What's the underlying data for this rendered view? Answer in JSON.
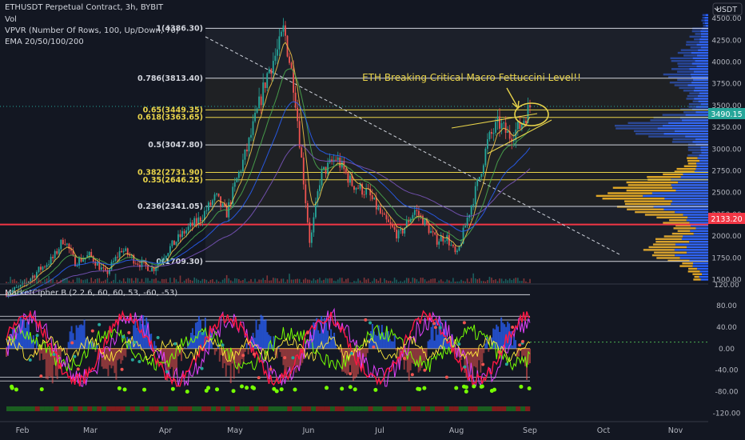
{
  "header": {
    "symbol_line": "ETHUSDT Perpetual Contract, 3h, BYBIT",
    "vol_label": "Vol",
    "vpvr_label": "VPVR (Number Of Rows, 100, Up/Down, 70)",
    "ema_label": "EMA 20/50/100/200",
    "currency": "USDT"
  },
  "indicator": {
    "label": "MarketCipher B (2.2.6, 60, 60, 53, -60, -53)"
  },
  "annotation": {
    "text": "ETH Breaking Critical Macro Fettuccini Level!!"
  },
  "colors": {
    "background": "#131722",
    "fib_white": "#d1d4dc",
    "fib_yellow": "#e8d34a",
    "red_line": "#f23645",
    "up_candle": "#26a69a",
    "down_candle": "#ef5350",
    "volume_up": "#2962ff",
    "volume_down": "#e0a526"
  },
  "chart_data": {
    "type": "candlestick",
    "title": "ETHUSDT Perpetual Contract, 3h, BYBIT",
    "price_axis": {
      "ticks": [
        4500,
        4250,
        4000,
        3750,
        3500,
        3250,
        3000,
        2750,
        2500,
        2250,
        2000,
        1750,
        1500
      ],
      "tick_labels": [
        "4500.00",
        "4250.00",
        "4000.00",
        "3750.00",
        "3500.00",
        "3250.00",
        "3000.00",
        "2750.00",
        "2500.00",
        "2250.00",
        "2000.00",
        "1750.00",
        "1500.00"
      ],
      "range": [
        1450,
        4620
      ],
      "volume_scale_label": "120.00"
    },
    "time_axis": {
      "labels": [
        "Feb",
        "Mar",
        "Apr",
        "May",
        "Jun",
        "Jul",
        "Aug",
        "Sep",
        "Oct",
        "Nov"
      ]
    },
    "current_price": {
      "value": 3490.15,
      "label": "3490.15"
    },
    "red_level": {
      "value": 2133.2,
      "label": "2133.20"
    },
    "fib_levels": [
      {
        "ratio": "1",
        "value": 4386.3,
        "label": "1(4386.30)",
        "style": "white"
      },
      {
        "ratio": "0.786",
        "value": 3813.4,
        "label": "0.786(3813.40)",
        "style": "white"
      },
      {
        "ratio": "0.65",
        "value": 3449.35,
        "label": "0.65(3449.35)",
        "style": "yellow"
      },
      {
        "ratio": "0.618",
        "value": 3363.65,
        "label": "0.618(3363.65)",
        "style": "yellow"
      },
      {
        "ratio": "0.5",
        "value": 3047.8,
        "label": "0.5(3047.80)",
        "style": "white"
      },
      {
        "ratio": "0.382",
        "value": 2731.9,
        "label": "0.382(2731.90)",
        "style": "yellow"
      },
      {
        "ratio": "0.35",
        "value": 2646.25,
        "label": "0.35(2646.25)",
        "style": "yellow"
      },
      {
        "ratio": "0.236",
        "value": 2341.05,
        "label": "0.236(2341.05)",
        "style": "white"
      },
      {
        "ratio": "0",
        "value": 1709.3,
        "label": "0(1709.30)",
        "style": "white"
      }
    ],
    "price_path": [
      {
        "t": 0.0,
        "p": 1350
      },
      {
        "t": 0.03,
        "p": 1420
      },
      {
        "t": 0.06,
        "p": 1600
      },
      {
        "t": 0.09,
        "p": 1750
      },
      {
        "t": 0.11,
        "p": 1980
      },
      {
        "t": 0.13,
        "p": 1700
      },
      {
        "t": 0.16,
        "p": 1780
      },
      {
        "t": 0.19,
        "p": 1560
      },
      {
        "t": 0.22,
        "p": 1850
      },
      {
        "t": 0.25,
        "p": 1700
      },
      {
        "t": 0.28,
        "p": 1620
      },
      {
        "t": 0.31,
        "p": 1850
      },
      {
        "t": 0.34,
        "p": 2050
      },
      {
        "t": 0.37,
        "p": 2200
      },
      {
        "t": 0.4,
        "p": 2450
      },
      {
        "t": 0.42,
        "p": 2250
      },
      {
        "t": 0.44,
        "p": 2650
      },
      {
        "t": 0.46,
        "p": 3000
      },
      {
        "t": 0.48,
        "p": 3450
      },
      {
        "t": 0.5,
        "p": 3900
      },
      {
        "t": 0.52,
        "p": 4150
      },
      {
        "t": 0.53,
        "p": 4386
      },
      {
        "t": 0.55,
        "p": 3700
      },
      {
        "t": 0.57,
        "p": 2500
      },
      {
        "t": 0.58,
        "p": 1900
      },
      {
        "t": 0.6,
        "p": 2700
      },
      {
        "t": 0.63,
        "p": 2900
      },
      {
        "t": 0.66,
        "p": 2600
      },
      {
        "t": 0.69,
        "p": 2500
      },
      {
        "t": 0.72,
        "p": 2200
      },
      {
        "t": 0.75,
        "p": 2000
      },
      {
        "t": 0.78,
        "p": 2300
      },
      {
        "t": 0.8,
        "p": 2150
      },
      {
        "t": 0.82,
        "p": 1950
      },
      {
        "t": 0.84,
        "p": 2000
      },
      {
        "t": 0.86,
        "p": 1760
      },
      {
        "t": 0.88,
        "p": 2200
      },
      {
        "t": 0.9,
        "p": 2600
      },
      {
        "t": 0.92,
        "p": 3100
      },
      {
        "t": 0.94,
        "p": 3300
      },
      {
        "t": 0.96,
        "p": 3150
      },
      {
        "t": 0.98,
        "p": 3250
      },
      {
        "t": 1.0,
        "p": 3490
      }
    ]
  }
}
